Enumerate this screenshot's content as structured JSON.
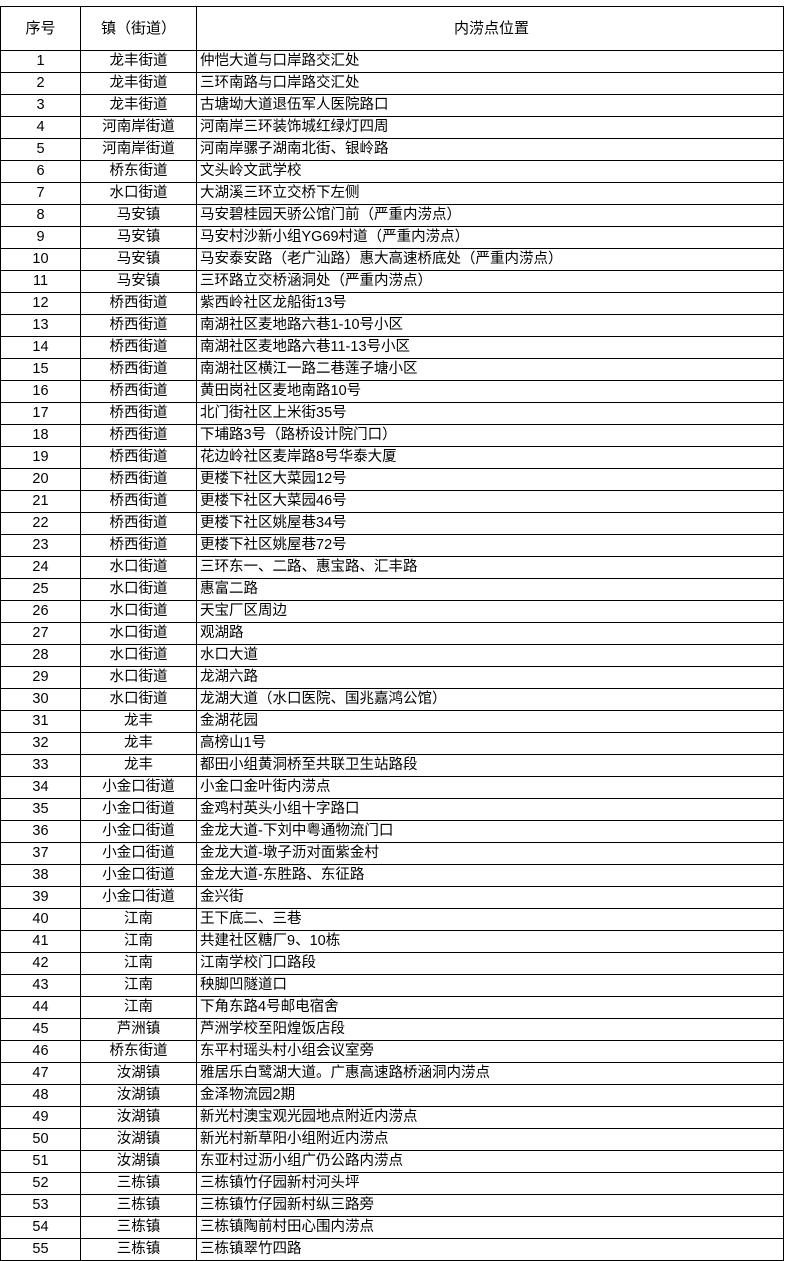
{
  "table": {
    "headers": [
      "序号",
      "镇（街道）",
      "内涝点位置"
    ],
    "rows": [
      [
        "1",
        "龙丰街道",
        "仲恺大道与口岸路交汇处"
      ],
      [
        "2",
        "龙丰街道",
        "三环南路与口岸路交汇处"
      ],
      [
        "3",
        "龙丰街道",
        "古塘坳大道退伍军人医院路口"
      ],
      [
        "4",
        "河南岸街道",
        "河南岸三环装饰城红绿灯四周"
      ],
      [
        "5",
        "河南岸街道",
        "河南岸骡子湖南北街、银岭路"
      ],
      [
        "6",
        "桥东街道",
        "文头岭文武学校"
      ],
      [
        "7",
        "水口街道",
        "大湖溪三环立交桥下左侧"
      ],
      [
        "8",
        "马安镇",
        "马安碧桂园天骄公馆门前（严重内涝点）"
      ],
      [
        "9",
        "马安镇",
        "马安村沙新小组YG69村道（严重内涝点）"
      ],
      [
        "10",
        "马安镇",
        "马安泰安路（老广汕路）惠大高速桥底处（严重内涝点）"
      ],
      [
        "11",
        "马安镇",
        "三环路立交桥涵洞处（严重内涝点）"
      ],
      [
        "12",
        "桥西街道",
        "紫西岭社区龙船街13号"
      ],
      [
        "13",
        "桥西街道",
        "南湖社区麦地路六巷1-10号小区"
      ],
      [
        "14",
        "桥西街道",
        "南湖社区麦地路六巷11-13号小区"
      ],
      [
        "15",
        "桥西街道",
        "南湖社区横江一路二巷莲子塘小区"
      ],
      [
        "16",
        "桥西街道",
        "黄田岗社区麦地南路10号"
      ],
      [
        "17",
        "桥西街道",
        "北门街社区上米街35号"
      ],
      [
        "18",
        "桥西街道",
        "下埔路3号（路桥设计院门口）"
      ],
      [
        "19",
        "桥西街道",
        "花边岭社区麦岸路8号华泰大厦"
      ],
      [
        "20",
        "桥西街道",
        "更楼下社区大菜园12号"
      ],
      [
        "21",
        "桥西街道",
        "更楼下社区大菜园46号"
      ],
      [
        "22",
        "桥西街道",
        "更楼下社区姚屋巷34号"
      ],
      [
        "23",
        "桥西街道",
        "更楼下社区姚屋巷72号"
      ],
      [
        "24",
        "水口街道",
        "三环东一、二路、惠宝路、汇丰路"
      ],
      [
        "25",
        "水口街道",
        "惠富二路"
      ],
      [
        "26",
        "水口街道",
        "天宝厂区周边"
      ],
      [
        "27",
        "水口街道",
        "观湖路"
      ],
      [
        "28",
        "水口街道",
        "水口大道"
      ],
      [
        "29",
        "水口街道",
        "龙湖六路"
      ],
      [
        "30",
        "水口街道",
        "龙湖大道（水口医院、国兆嘉鸿公馆）"
      ],
      [
        "31",
        "龙丰",
        "金湖花园"
      ],
      [
        "32",
        "龙丰",
        "高榜山1号"
      ],
      [
        "33",
        "龙丰",
        "都田小组黄洞桥至共联卫生站路段"
      ],
      [
        "34",
        "小金口街道",
        "小金口金叶街内涝点"
      ],
      [
        "35",
        "小金口街道",
        "金鸡村英头小组十字路口"
      ],
      [
        "36",
        "小金口街道",
        "金龙大道-下刘中粤通物流门口"
      ],
      [
        "37",
        "小金口街道",
        "金龙大道-墩子沥对面紫金村"
      ],
      [
        "38",
        "小金口街道",
        "金龙大道-东胜路、东征路"
      ],
      [
        "39",
        "小金口街道",
        "金兴街"
      ],
      [
        "40",
        "江南",
        "王下底二、三巷"
      ],
      [
        "41",
        "江南",
        "共建社区糖厂9、10栋"
      ],
      [
        "42",
        "江南",
        "江南学校门口路段"
      ],
      [
        "43",
        "江南",
        "秧脚凹隧道口"
      ],
      [
        "44",
        "江南",
        "下角东路4号邮电宿舍"
      ],
      [
        "45",
        "芦洲镇",
        "芦洲学校至阳煌饭店段"
      ],
      [
        "46",
        "桥东街道",
        "东平村瑶头村小组会议室旁"
      ],
      [
        "47",
        "汝湖镇",
        "雅居乐白鹭湖大道。广惠高速路桥涵洞内涝点"
      ],
      [
        "48",
        "汝湖镇",
        "金泽物流园2期"
      ],
      [
        "49",
        "汝湖镇",
        "新光村澳宝观光园地点附近内涝点"
      ],
      [
        "50",
        "汝湖镇",
        "新光村新草阳小组附近内涝点"
      ],
      [
        "51",
        "汝湖镇",
        "东亚村过沥小组广仍公路内涝点"
      ],
      [
        "52",
        "三栋镇",
        "三栋镇竹仔园新村河头坪"
      ],
      [
        "53",
        "三栋镇",
        "三栋镇竹仔园新村纵三路旁"
      ],
      [
        "54",
        "三栋镇",
        "三栋镇陶前村田心围内涝点"
      ],
      [
        "55",
        "三栋镇",
        "三栋镇翠竹四路"
      ]
    ]
  }
}
